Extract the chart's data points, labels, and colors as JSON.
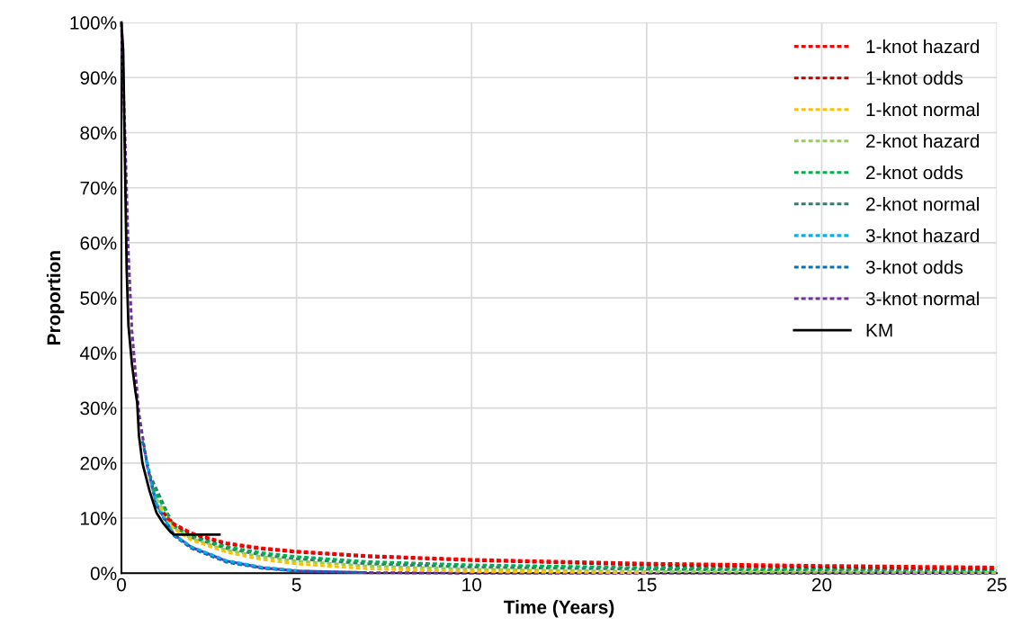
{
  "chart_data": {
    "type": "line",
    "xlabel": "Time (Years)",
    "ylabel": "Proportion",
    "xlim": [
      0,
      25
    ],
    "xticks": [
      0,
      5,
      10,
      15,
      20,
      25
    ],
    "ylim": [
      0,
      100
    ],
    "yticks": [
      {
        "value": 0,
        "label": "0%"
      },
      {
        "value": 10,
        "label": "10%"
      },
      {
        "value": 20,
        "label": "20%"
      },
      {
        "value": 30,
        "label": "30%"
      },
      {
        "value": 40,
        "label": "40%"
      },
      {
        "value": 50,
        "label": "50%"
      },
      {
        "value": 60,
        "label": "60%"
      },
      {
        "value": 70,
        "label": "70%"
      },
      {
        "value": 80,
        "label": "80%"
      },
      {
        "value": 90,
        "label": "90%"
      },
      {
        "value": 100,
        "label": "100%"
      }
    ],
    "grid": true,
    "legend": "top right",
    "marker": "none",
    "x": [
      0,
      0.1,
      0.2,
      0.3,
      0.5,
      0.75,
      1,
      1.5,
      2,
      3,
      4,
      5,
      7,
      10,
      15,
      20,
      25
    ],
    "series": [
      {
        "name": "1-knot hazard",
        "color": "#ff0000",
        "line_style": "dashed",
        "x": [
          1.3,
          1.5,
          2,
          3,
          4,
          5,
          7,
          10,
          15,
          20,
          25
        ],
        "values": [
          10,
          9,
          7.3,
          5.5,
          4.6,
          4,
          3.2,
          2.5,
          1.8,
          1.4,
          1.1
        ]
      },
      {
        "name": "1-knot odds",
        "color": "#c00000",
        "line_style": "dashed",
        "x": [
          1.2,
          1.5,
          2,
          3,
          4,
          5,
          7,
          10,
          15,
          20,
          25
        ],
        "values": [
          11,
          8.8,
          7.1,
          5.3,
          4.4,
          3.8,
          3,
          2.3,
          1.5,
          1.1,
          0.8
        ]
      },
      {
        "name": "1-knot normal",
        "color": "#ffc000",
        "line_style": "dashed",
        "x": [
          1.1,
          1.5,
          2,
          3,
          4,
          5,
          7,
          10,
          15
        ],
        "values": [
          12,
          8,
          6,
          3.8,
          2.5,
          1.7,
          0.8,
          0.3,
          0.1
        ]
      },
      {
        "name": "2-knot hazard",
        "color": "#92d050",
        "line_style": "dashed",
        "x": [
          1,
          1.5,
          2,
          3,
          4,
          5,
          7,
          10,
          15,
          20,
          25
        ],
        "values": [
          13.5,
          8.2,
          6.3,
          4.2,
          3,
          2.2,
          1.3,
          0.7,
          0.3,
          0.2,
          0.1
        ]
      },
      {
        "name": "2-knot odds",
        "color": "#00b050",
        "line_style": "dashed",
        "x": [
          0.9,
          1.5,
          2,
          3,
          4,
          5,
          7,
          10,
          15,
          20,
          25
        ],
        "values": [
          15.5,
          8.6,
          6.8,
          4.8,
          3.7,
          3,
          2.1,
          1.5,
          1,
          0.8,
          0.6
        ]
      },
      {
        "name": "2-knot normal",
        "color": "#2e7d6e",
        "line_style": "dashed",
        "x": [
          0.8,
          1.5,
          2,
          3,
          4,
          5,
          7,
          10,
          15,
          20,
          25
        ],
        "values": [
          18,
          8.4,
          6.5,
          4.5,
          3.3,
          2.6,
          1.7,
          1.1,
          0.7,
          0.5,
          0.4
        ]
      },
      {
        "name": "3-knot hazard",
        "color": "#00b0f0",
        "line_style": "dashed",
        "x": [
          0.7,
          1,
          1.5,
          2,
          3,
          4,
          5
        ],
        "values": [
          20.5,
          12.7,
          7,
          4.8,
          2.3,
          1.1,
          0.5
        ]
      },
      {
        "name": "3-knot odds",
        "color": "#0070c0",
        "line_style": "dashed",
        "x": [
          0.6,
          1,
          1.5,
          2,
          3,
          4,
          5,
          7
        ],
        "values": [
          24,
          12.3,
          6.8,
          4.5,
          2,
          0.9,
          0.4,
          0.1
        ]
      },
      {
        "name": "3-knot normal",
        "color": "#7030a0",
        "line_style": "dashed",
        "values": [
          100,
          80,
          58,
          44,
          29,
          19,
          12.5,
          7,
          4.7,
          2.2,
          1,
          0.4,
          0.1,
          0,
          0,
          0,
          0
        ]
      },
      {
        "name": "KM",
        "color": "#000000",
        "line_style": "solid",
        "x": [
          0,
          0.05,
          0.1,
          0.15,
          0.2,
          0.3,
          0.4,
          0.45,
          0.5,
          0.6,
          0.8,
          1.0,
          1.2,
          1.4,
          1.5,
          2.8
        ],
        "values": [
          100,
          95,
          75,
          55,
          45,
          38,
          33,
          31,
          25,
          20,
          15,
          11,
          9,
          7.5,
          7,
          7
        ]
      }
    ]
  }
}
